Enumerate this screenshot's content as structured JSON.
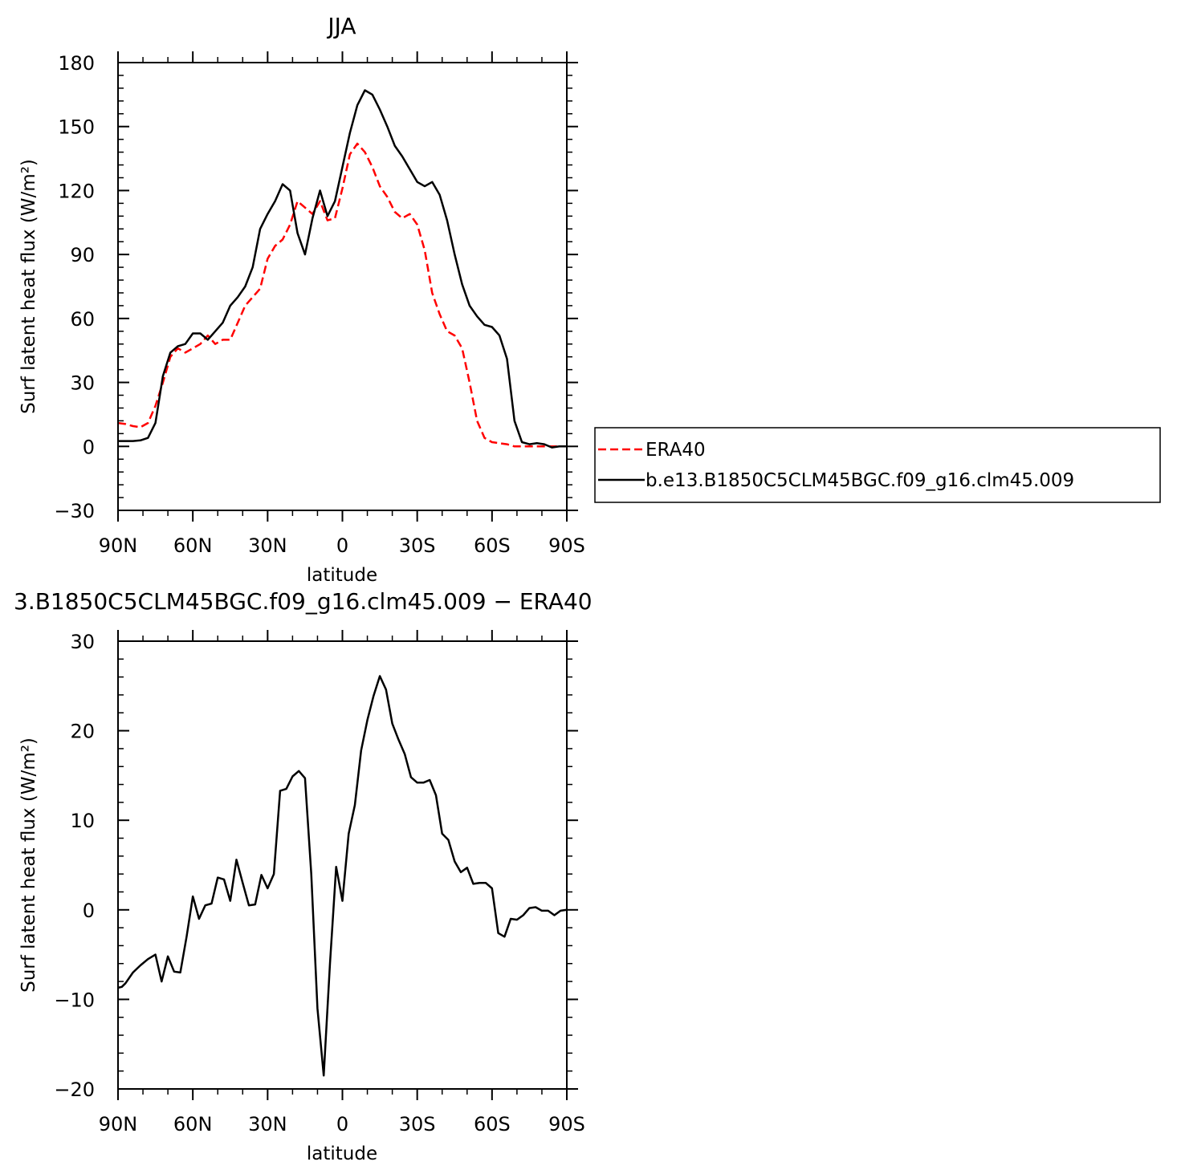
{
  "chart_data": [
    {
      "type": "line",
      "title": "JJA",
      "xlabel": "latitude",
      "ylabel": "Surf latent heat flux (W/m²)",
      "xlim": [
        90,
        -90
      ],
      "ylim": [
        -30,
        180
      ],
      "xticks": [
        90,
        60,
        30,
        0,
        -30,
        -60,
        -90
      ],
      "xtick_labels": [
        "90N",
        "60N",
        "30N",
        "0",
        "30S",
        "60S",
        "90S"
      ],
      "yticks": [
        -30,
        0,
        30,
        60,
        90,
        120,
        150,
        180
      ],
      "ytick_labels": [
        "−30",
        "0",
        "30",
        "60",
        "90",
        "120",
        "150",
        "180"
      ],
      "grid": false,
      "legend": "right",
      "series": [
        {
          "name": "ERA40",
          "color": "#ff0000",
          "dash": "dashed",
          "x": [
            90,
            87,
            84,
            81,
            78,
            75,
            72,
            69,
            66,
            63,
            60,
            57,
            54,
            51,
            48,
            45,
            42,
            39,
            36,
            33,
            30,
            27,
            24,
            21,
            18,
            15,
            12,
            9,
            6,
            3,
            0,
            -3,
            -6,
            -9,
            -12,
            -15,
            -18,
            -21,
            -24,
            -27,
            -30,
            -33,
            -36,
            -39,
            -42,
            -45,
            -48,
            -51,
            -54,
            -57,
            -60,
            -63,
            -66,
            -69,
            -72,
            -75,
            -78,
            -81,
            -84,
            -87,
            -90
          ],
          "values": [
            11,
            10.5,
            9.5,
            9,
            11,
            19,
            30,
            42,
            46,
            44,
            46,
            48,
            52,
            48,
            50,
            50,
            58,
            66,
            70,
            74,
            88,
            94,
            97,
            104,
            115,
            112,
            109,
            115,
            106,
            107,
            121,
            137,
            142,
            138,
            131,
            122,
            117,
            110,
            107,
            109,
            104,
            92,
            72,
            62,
            54,
            52,
            46,
            30,
            12,
            4,
            2,
            1.5,
            1,
            0,
            0,
            0,
            0,
            0,
            0,
            0,
            0
          ]
        },
        {
          "name": "b.e13.B1850C5CLM45BGC.f09_g16.clm45.009",
          "color": "#000000",
          "dash": "solid",
          "x": [
            90,
            87,
            84,
            81,
            78,
            75,
            72,
            69,
            66,
            63,
            60,
            57,
            54,
            51,
            48,
            45,
            42,
            39,
            36,
            33,
            30,
            27,
            24,
            21,
            18,
            15,
            12,
            9,
            6,
            3,
            0,
            -3,
            -6,
            -9,
            -12,
            -15,
            -18,
            -21,
            -24,
            -27,
            -30,
            -33,
            -36,
            -39,
            -42,
            -45,
            -48,
            -51,
            -54,
            -57,
            -60,
            -63,
            -66,
            -69,
            -72,
            -75,
            -78,
            -81,
            -84,
            -87,
            -90
          ],
          "values": [
            2.5,
            2.5,
            2.5,
            2.8,
            4,
            11,
            33,
            44,
            47,
            48,
            53,
            53,
            50,
            54,
            58,
            66,
            70,
            75,
            84,
            102,
            109,
            115,
            123,
            120,
            100,
            90,
            107,
            120,
            108,
            115,
            131,
            147,
            160,
            167,
            165,
            158,
            150,
            141,
            136,
            130,
            124,
            122,
            124,
            118,
            106,
            90,
            76,
            66,
            61,
            57,
            56,
            52,
            41,
            12,
            2,
            1,
            1.5,
            1,
            -0.5,
            0,
            0
          ]
        }
      ]
    },
    {
      "type": "line",
      "title": "3.B1850C5CLM45BGC.f09_g16.clm45.009 − ERA40",
      "xlabel": "latitude",
      "ylabel": "Surf latent heat flux (W/m²)",
      "xlim": [
        90,
        -90
      ],
      "ylim": [
        -20,
        30
      ],
      "xticks": [
        90,
        60,
        30,
        0,
        -30,
        -60,
        -90
      ],
      "xtick_labels": [
        "90N",
        "60N",
        "30N",
        "0",
        "30S",
        "60S",
        "90S"
      ],
      "yticks": [
        -20,
        -10,
        0,
        10,
        20,
        30
      ],
      "ytick_labels": [
        "−20",
        "−10",
        "0",
        "10",
        "20",
        "30"
      ],
      "grid": false,
      "legend": "none",
      "series": [
        {
          "color": "#000000",
          "dash": "solid",
          "x": [
            90,
            88.5,
            87,
            84,
            81,
            78,
            75,
            72.5,
            70,
            67.5,
            65,
            62.5,
            60,
            57.5,
            55,
            52.5,
            50,
            47.5,
            45,
            42.5,
            40,
            37.5,
            35,
            32.5,
            30,
            27.5,
            25,
            22.5,
            20,
            17.5,
            15,
            12.5,
            10,
            7.5,
            5,
            2.5,
            0,
            -2.5,
            -5,
            -7.5,
            -10,
            -12.5,
            -15,
            -17.5,
            -20,
            -22.5,
            -25,
            -27.5,
            -30,
            -32.5,
            -35,
            -37.5,
            -40,
            -42.5,
            -45,
            -47.5,
            -50,
            -52.5,
            -55,
            -57.5,
            -60,
            -62.5,
            -65,
            -67.5,
            -70,
            -72.5,
            -75,
            -77.5,
            -80,
            -82.5,
            -85,
            -87.5,
            -90
          ],
          "values": [
            -8.7,
            -8.6,
            -8.2,
            -7,
            -6.2,
            -5.5,
            -5,
            -8,
            -5.2,
            -6.9,
            -7,
            -3,
            1.5,
            -1,
            0.5,
            0.7,
            3.6,
            3.4,
            1,
            5.6,
            3,
            0.5,
            0.6,
            3.9,
            2.4,
            4,
            13.3,
            13.5,
            14.9,
            15.5,
            14.7,
            4,
            -11,
            -18.5,
            -6,
            4.8,
            1,
            8.5,
            11.7,
            17.8,
            21.2,
            23.9,
            26.1,
            24.6,
            20.8,
            19,
            17.4,
            14.8,
            14.2,
            14.2,
            14.5,
            12.8,
            8.5,
            7.8,
            5.4,
            4.2,
            4.7,
            2.9,
            3,
            3,
            2.4,
            -2.6,
            -3,
            -1,
            -1.1,
            -0.6,
            0.2,
            0.3,
            -0.1,
            -0.1,
            -0.6,
            -0.1,
            0
          ]
        }
      ]
    }
  ],
  "legend": {
    "entries": [
      "ERA40",
      "b.e13.B1850C5CLM45BGC.f09_g16.clm45.009"
    ]
  }
}
